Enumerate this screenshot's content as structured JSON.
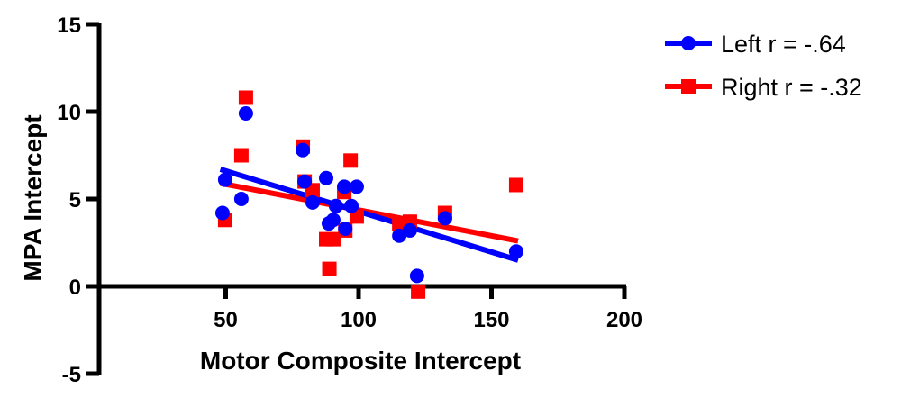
{
  "chart_data": {
    "type": "scatter",
    "xlabel": "Motor Composite Intercept",
    "ylabel": "MPA Intercept",
    "xlim": [
      0,
      200
    ],
    "ylim": [
      -5,
      15
    ],
    "xticks": [
      50,
      100,
      150,
      200
    ],
    "yticks": [
      -5,
      0,
      5,
      10,
      15
    ],
    "grid": false,
    "legend_position": "top-right",
    "series": [
      {
        "name": "Left r = -.64",
        "color": "#0000ff",
        "marker": "circle",
        "points": [
          [
            48.8,
            4.2
          ],
          [
            49.8,
            6.1
          ],
          [
            55.9,
            5.0
          ],
          [
            57.6,
            9.9
          ],
          [
            79,
            7.8
          ],
          [
            79.7,
            6.0
          ],
          [
            82.7,
            4.8
          ],
          [
            87.8,
            6.2
          ],
          [
            88.8,
            3.6
          ],
          [
            90.5,
            3.8
          ],
          [
            91.5,
            4.6
          ],
          [
            94.6,
            5.7
          ],
          [
            95,
            3.3
          ],
          [
            97.3,
            4.6
          ],
          [
            99.3,
            5.7
          ],
          [
            115.3,
            2.9
          ],
          [
            119.3,
            3.2
          ],
          [
            122,
            0.6
          ],
          [
            132.5,
            3.9
          ],
          [
            159.3,
            2.0
          ]
        ],
        "fit": [
          [
            48,
            6.7
          ],
          [
            160,
            1.5
          ]
        ]
      },
      {
        "name": "Right r = -.32",
        "color": "#ff0000",
        "marker": "square",
        "points": [
          [
            49.8,
            3.8
          ],
          [
            57.6,
            10.8
          ],
          [
            55.9,
            7.5
          ],
          [
            79,
            8.0
          ],
          [
            79.7,
            6.0
          ],
          [
            82.7,
            5.5
          ],
          [
            87.8,
            2.7
          ],
          [
            89,
            1.0
          ],
          [
            90.5,
            2.7
          ],
          [
            94.6,
            5.4
          ],
          [
            95,
            3.2
          ],
          [
            97,
            7.2
          ],
          [
            99.3,
            4.0
          ],
          [
            115.3,
            3.6
          ],
          [
            119.3,
            3.7
          ],
          [
            122.4,
            -0.3
          ],
          [
            132.5,
            4.2
          ],
          [
            159.3,
            5.8
          ]
        ],
        "fit": [
          [
            48,
            5.9
          ],
          [
            160,
            2.6
          ]
        ]
      }
    ]
  }
}
